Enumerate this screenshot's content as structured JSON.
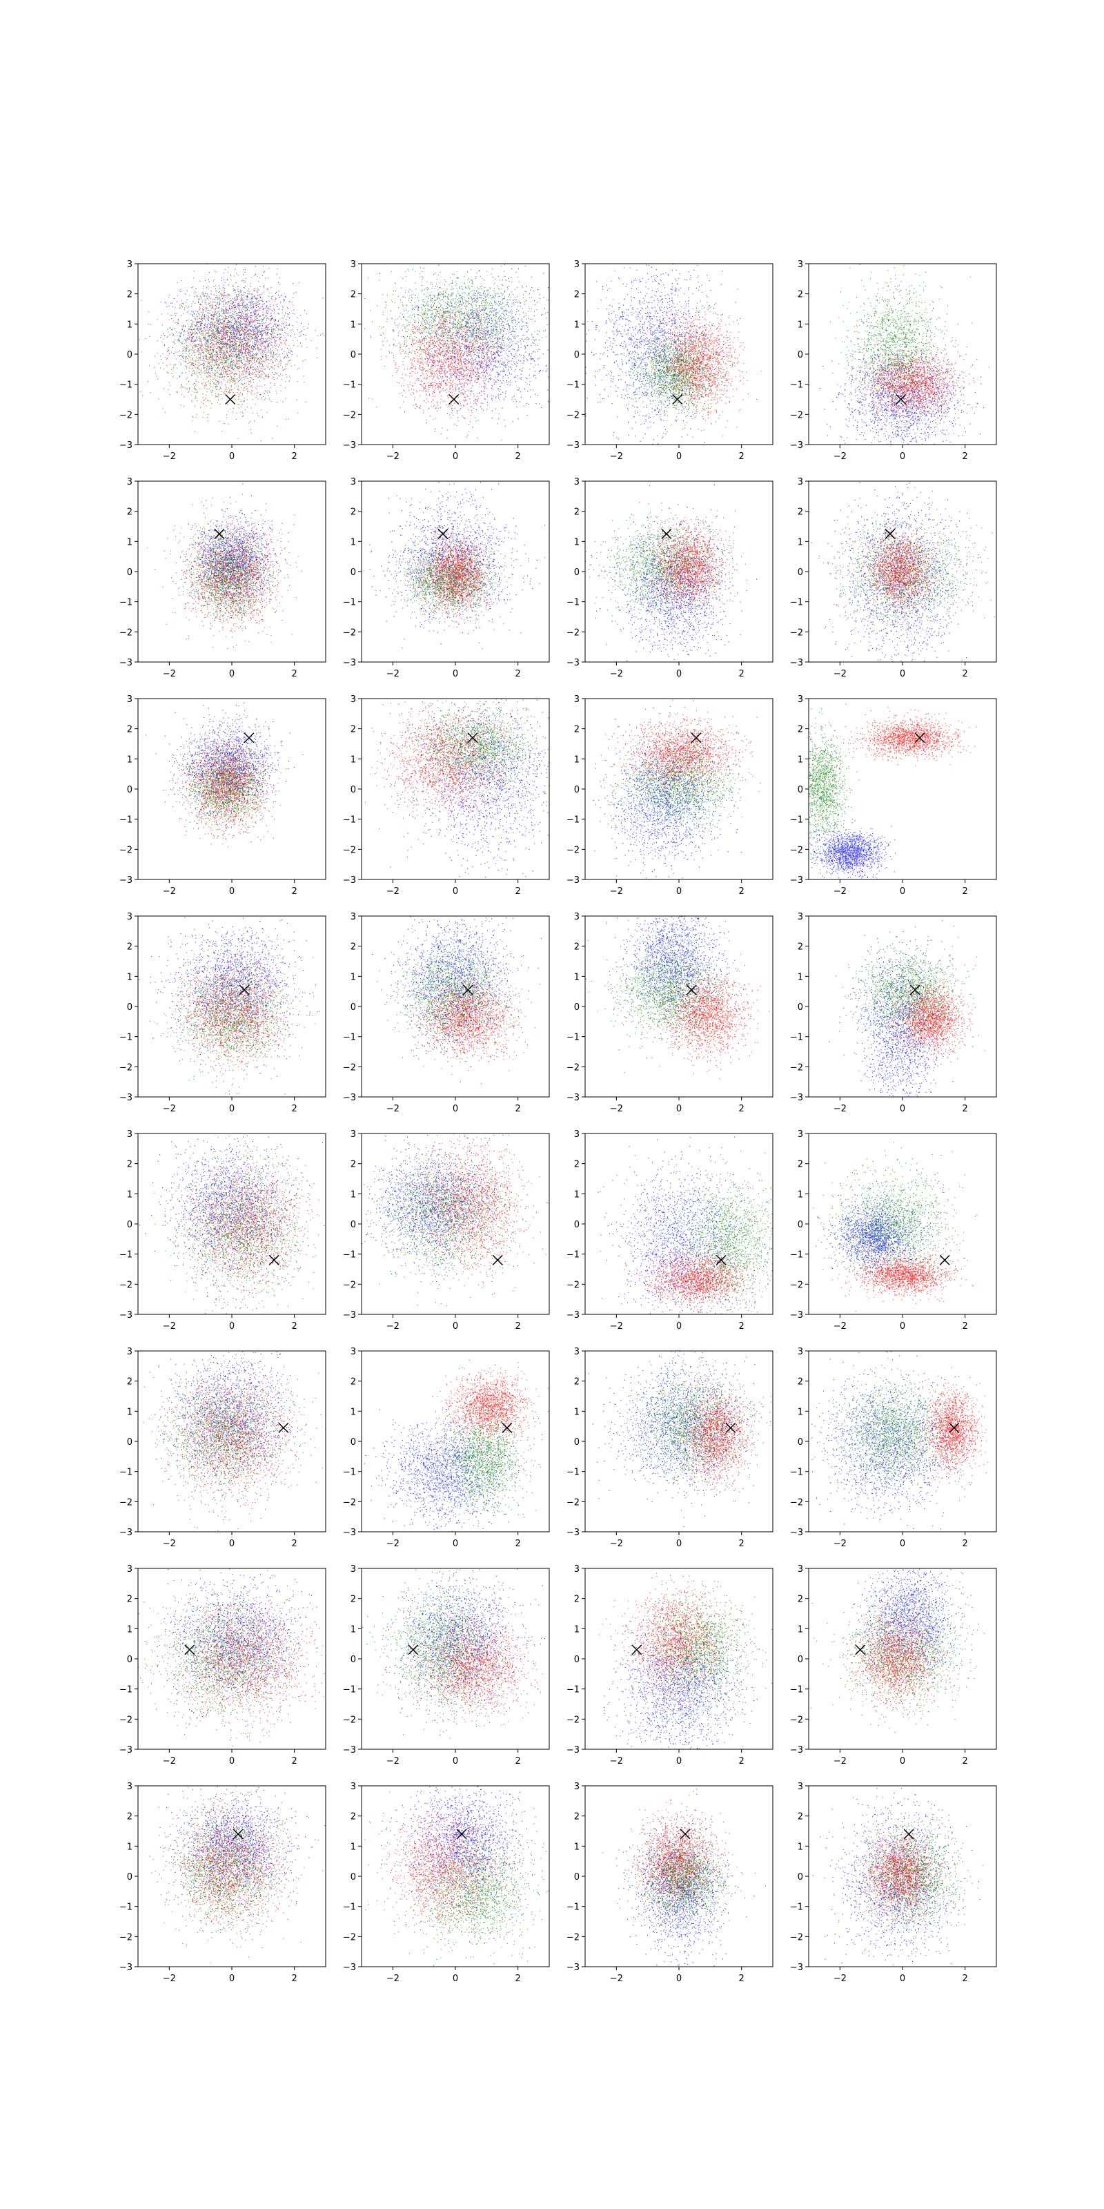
{
  "figure": {
    "rows": 8,
    "cols": 4,
    "series_colors": {
      "blue": "#0000ff",
      "green": "#008000",
      "red": "#ff0000",
      "marker": "#000000"
    }
  },
  "chart_data": {
    "type": "scatter",
    "xlim": [
      -3,
      3
    ],
    "ylim": [
      -3,
      3
    ],
    "xticks": [
      -2,
      0,
      2
    ],
    "yticks": [
      -3,
      -2,
      -1,
      0,
      1,
      2,
      3
    ],
    "xtick_labels": [
      "−2",
      "0",
      "2"
    ],
    "ytick_labels": [
      "−3",
      "−2",
      "−1",
      "0",
      "1",
      "2",
      "3"
    ],
    "grid": false,
    "legend": "none",
    "points_per_cluster": 1500,
    "row_markers": [
      {
        "x": -0.05,
        "y": -1.5
      },
      {
        "x": -0.4,
        "y": 1.25
      },
      {
        "x": 0.55,
        "y": 1.7
      },
      {
        "x": 0.4,
        "y": 0.55
      },
      {
        "x": 1.35,
        "y": -1.2
      },
      {
        "x": 1.65,
        "y": 0.45
      },
      {
        "x": -1.35,
        "y": 0.3
      },
      {
        "x": 0.2,
        "y": 1.4
      }
    ],
    "panels": [
      {
        "clusters": [
          {
            "color": "blue",
            "cx": 0.2,
            "cy": 0.8,
            "sx": 0.9,
            "sy": 0.8
          },
          {
            "color": "green",
            "cx": -0.2,
            "cy": 0.3,
            "sx": 0.9,
            "sy": 0.9
          },
          {
            "color": "red",
            "cx": 0.0,
            "cy": 0.3,
            "sx": 0.9,
            "sy": 0.9
          }
        ]
      },
      {
        "clusters": [
          {
            "color": "blue",
            "cx": 0.8,
            "cy": 0.3,
            "sx": 1.0,
            "sy": 1.1
          },
          {
            "color": "green",
            "cx": 0.2,
            "cy": 1.2,
            "sx": 1.1,
            "sy": 0.7
          },
          {
            "color": "red",
            "cx": -0.2,
            "cy": -0.2,
            "sx": 0.8,
            "sy": 0.8
          }
        ]
      },
      {
        "clusters": [
          {
            "color": "blue",
            "cx": -0.7,
            "cy": 0.3,
            "sx": 0.9,
            "sy": 1.3
          },
          {
            "color": "green",
            "cx": -0.1,
            "cy": -0.6,
            "sx": 0.6,
            "sy": 0.6
          },
          {
            "color": "red",
            "cx": 0.6,
            "cy": -0.3,
            "sx": 0.6,
            "sy": 0.8
          }
        ]
      },
      {
        "clusters": [
          {
            "color": "blue",
            "cx": 0.0,
            "cy": -1.5,
            "sx": 0.9,
            "sy": 0.8
          },
          {
            "color": "green",
            "cx": -0.2,
            "cy": 0.2,
            "sx": 0.7,
            "sy": 1.0
          },
          {
            "color": "red",
            "cx": 0.3,
            "cy": -1.0,
            "sx": 0.7,
            "sy": 0.5
          }
        ]
      },
      {
        "clusters": [
          {
            "color": "blue",
            "cx": 0.0,
            "cy": 0.3,
            "sx": 0.6,
            "sy": 0.7
          },
          {
            "color": "green",
            "cx": -0.1,
            "cy": -0.1,
            "sx": 0.6,
            "sy": 0.7
          },
          {
            "color": "red",
            "cx": 0.0,
            "cy": -0.1,
            "sx": 0.7,
            "sy": 0.8
          }
        ]
      },
      {
        "clusters": [
          {
            "color": "blue",
            "cx": -0.1,
            "cy": 0.4,
            "sx": 0.9,
            "sy": 1.0
          },
          {
            "color": "green",
            "cx": -0.2,
            "cy": -0.3,
            "sx": 0.7,
            "sy": 0.5
          },
          {
            "color": "red",
            "cx": 0.0,
            "cy": -0.1,
            "sx": 0.5,
            "sy": 0.6
          }
        ]
      },
      {
        "clusters": [
          {
            "color": "blue",
            "cx": -0.1,
            "cy": -0.6,
            "sx": 0.8,
            "sy": 1.0
          },
          {
            "color": "green",
            "cx": -0.5,
            "cy": 0.2,
            "sx": 0.9,
            "sy": 0.7
          },
          {
            "color": "red",
            "cx": 0.3,
            "cy": 0.2,
            "sx": 0.5,
            "sy": 0.6
          }
        ]
      },
      {
        "clusters": [
          {
            "color": "blue",
            "cx": -0.1,
            "cy": -0.3,
            "sx": 0.9,
            "sy": 1.3
          },
          {
            "color": "green",
            "cx": 0.1,
            "cy": -0.1,
            "sx": 1.0,
            "sy": 0.8
          },
          {
            "color": "red",
            "cx": -0.1,
            "cy": 0.0,
            "sx": 0.5,
            "sy": 0.6
          }
        ]
      },
      {
        "clusters": [
          {
            "color": "blue",
            "cx": -0.1,
            "cy": 0.8,
            "sx": 0.7,
            "sy": 0.7
          },
          {
            "color": "green",
            "cx": -0.2,
            "cy": 0.1,
            "sx": 0.6,
            "sy": 0.6
          },
          {
            "color": "red",
            "cx": -0.2,
            "cy": 0.1,
            "sx": 0.6,
            "sy": 0.7
          }
        ]
      },
      {
        "clusters": [
          {
            "color": "blue",
            "cx": 1.0,
            "cy": 0.3,
            "sx": 1.1,
            "sy": 1.2
          },
          {
            "color": "green",
            "cx": 0.6,
            "cy": 1.4,
            "sx": 0.9,
            "sy": 0.6
          },
          {
            "color": "red",
            "cx": -0.3,
            "cy": 0.9,
            "sx": 0.9,
            "sy": 0.8
          }
        ]
      },
      {
        "clusters": [
          {
            "color": "blue",
            "cx": -0.5,
            "cy": -0.4,
            "sx": 0.8,
            "sy": 1.0
          },
          {
            "color": "green",
            "cx": 0.0,
            "cy": 0.2,
            "sx": 0.8,
            "sy": 0.7
          },
          {
            "color": "red",
            "cx": 0.1,
            "cy": 1.2,
            "sx": 0.8,
            "sy": 0.5
          }
        ]
      },
      {
        "clusters": [
          {
            "color": "blue",
            "cx": -1.7,
            "cy": -2.1,
            "sx": 0.5,
            "sy": 0.35
          },
          {
            "color": "green",
            "cx": -2.6,
            "cy": 0.1,
            "sx": 0.4,
            "sy": 0.9
          },
          {
            "color": "red",
            "cx": 0.2,
            "cy": 1.7,
            "sx": 0.7,
            "sy": 0.3
          }
        ]
      },
      {
        "clusters": [
          {
            "color": "blue",
            "cx": 0.1,
            "cy": 0.8,
            "sx": 0.9,
            "sy": 0.9
          },
          {
            "color": "green",
            "cx": 0.0,
            "cy": -0.3,
            "sx": 0.8,
            "sy": 0.8
          },
          {
            "color": "red",
            "cx": 0.0,
            "cy": -0.2,
            "sx": 0.8,
            "sy": 0.8
          }
        ]
      },
      {
        "clusters": [
          {
            "color": "blue",
            "cx": 0.0,
            "cy": 0.9,
            "sx": 0.8,
            "sy": 1.0
          },
          {
            "color": "green",
            "cx": -0.1,
            "cy": 0.4,
            "sx": 0.8,
            "sy": 0.8
          },
          {
            "color": "red",
            "cx": 0.4,
            "cy": -0.4,
            "sx": 0.7,
            "sy": 0.6
          }
        ]
      },
      {
        "clusters": [
          {
            "color": "blue",
            "cx": -0.2,
            "cy": 1.6,
            "sx": 0.7,
            "sy": 0.9
          },
          {
            "color": "green",
            "cx": -0.3,
            "cy": 0.5,
            "sx": 0.8,
            "sy": 0.7
          },
          {
            "color": "red",
            "cx": 0.9,
            "cy": -0.3,
            "sx": 0.6,
            "sy": 0.6
          }
        ]
      },
      {
        "clusters": [
          {
            "color": "blue",
            "cx": -0.1,
            "cy": -0.8,
            "sx": 0.6,
            "sy": 1.3
          },
          {
            "color": "green",
            "cx": 0.2,
            "cy": 0.4,
            "sx": 0.8,
            "sy": 0.7
          },
          {
            "color": "red",
            "cx": 0.9,
            "cy": -0.4,
            "sx": 0.5,
            "sy": 0.5
          }
        ]
      },
      {
        "clusters": [
          {
            "color": "blue",
            "cx": -0.1,
            "cy": 0.6,
            "sx": 0.9,
            "sy": 1.0
          },
          {
            "color": "green",
            "cx": 0.3,
            "cy": -0.2,
            "sx": 0.9,
            "sy": 1.0
          },
          {
            "color": "red",
            "cx": 0.4,
            "cy": 0.0,
            "sx": 0.9,
            "sy": 1.0
          }
        ]
      },
      {
        "clusters": [
          {
            "color": "blue",
            "cx": -0.7,
            "cy": 0.7,
            "sx": 0.9,
            "sy": 0.8
          },
          {
            "color": "green",
            "cx": -0.3,
            "cy": 0.3,
            "sx": 1.0,
            "sy": 0.9
          },
          {
            "color": "red",
            "cx": 0.5,
            "cy": 0.6,
            "sx": 0.8,
            "sy": 1.0
          }
        ]
      },
      {
        "clusters": [
          {
            "color": "blue",
            "cx": 0.0,
            "cy": -0.6,
            "sx": 0.9,
            "sy": 1.2
          },
          {
            "color": "green",
            "cx": 1.6,
            "cy": -0.6,
            "sx": 0.7,
            "sy": 1.0
          },
          {
            "color": "red",
            "cx": 0.6,
            "cy": -1.8,
            "sx": 0.7,
            "sy": 0.4
          }
        ]
      },
      {
        "clusters": [
          {
            "color": "blue",
            "cx": -0.9,
            "cy": -0.4,
            "sx": 0.6,
            "sy": 0.5
          },
          {
            "color": "green",
            "cx": -0.3,
            "cy": 0.0,
            "sx": 0.9,
            "sy": 0.8
          },
          {
            "color": "red",
            "cx": 0.1,
            "cy": -1.7,
            "sx": 0.7,
            "sy": 0.3
          }
        ]
      },
      {
        "clusters": [
          {
            "color": "blue",
            "cx": 0.0,
            "cy": 0.8,
            "sx": 0.9,
            "sy": 1.0
          },
          {
            "color": "green",
            "cx": -0.3,
            "cy": 0.3,
            "sx": 0.9,
            "sy": 0.9
          },
          {
            "color": "red",
            "cx": 0.0,
            "cy": 0.2,
            "sx": 0.9,
            "sy": 1.0
          }
        ]
      },
      {
        "clusters": [
          {
            "color": "blue",
            "cx": -0.4,
            "cy": -1.0,
            "sx": 0.9,
            "sy": 0.8
          },
          {
            "color": "green",
            "cx": 0.9,
            "cy": -0.6,
            "sx": 0.6,
            "sy": 0.8
          },
          {
            "color": "red",
            "cx": 1.1,
            "cy": 1.2,
            "sx": 0.6,
            "sy": 0.5
          }
        ]
      },
      {
        "clusters": [
          {
            "color": "blue",
            "cx": 0.0,
            "cy": 0.6,
            "sx": 1.0,
            "sy": 1.0
          },
          {
            "color": "green",
            "cx": 0.4,
            "cy": 0.5,
            "sx": 0.8,
            "sy": 0.8
          },
          {
            "color": "red",
            "cx": 1.2,
            "cy": 0.2,
            "sx": 0.5,
            "sy": 0.7
          }
        ]
      },
      {
        "clusters": [
          {
            "color": "blue",
            "cx": -0.5,
            "cy": -0.1,
            "sx": 1.0,
            "sy": 1.1
          },
          {
            "color": "green",
            "cx": -0.3,
            "cy": 0.3,
            "sx": 0.8,
            "sy": 0.8
          },
          {
            "color": "red",
            "cx": 1.6,
            "cy": 0.4,
            "sx": 0.4,
            "sy": 0.6
          }
        ]
      },
      {
        "clusters": [
          {
            "color": "blue",
            "cx": 0.2,
            "cy": 0.6,
            "sx": 1.0,
            "sy": 0.9
          },
          {
            "color": "green",
            "cx": -0.2,
            "cy": 0.1,
            "sx": 1.0,
            "sy": 0.9
          },
          {
            "color": "red",
            "cx": 0.3,
            "cy": -0.1,
            "sx": 1.0,
            "sy": 0.9
          }
        ]
      },
      {
        "clusters": [
          {
            "color": "blue",
            "cx": 0.1,
            "cy": 0.7,
            "sx": 0.9,
            "sy": 1.0
          },
          {
            "color": "green",
            "cx": -0.4,
            "cy": 0.3,
            "sx": 0.8,
            "sy": 0.9
          },
          {
            "color": "red",
            "cx": 0.6,
            "cy": -0.3,
            "sx": 0.8,
            "sy": 0.7
          }
        ]
      },
      {
        "clusters": [
          {
            "color": "blue",
            "cx": 0.0,
            "cy": -1.1,
            "sx": 0.9,
            "sy": 1.0
          },
          {
            "color": "green",
            "cx": 0.6,
            "cy": 0.3,
            "sx": 0.8,
            "sy": 0.8
          },
          {
            "color": "red",
            "cx": -0.1,
            "cy": 0.6,
            "sx": 0.7,
            "sy": 0.8
          }
        ]
      },
      {
        "clusters": [
          {
            "color": "blue",
            "cx": 0.2,
            "cy": 1.4,
            "sx": 0.7,
            "sy": 0.9
          },
          {
            "color": "green",
            "cx": 0.0,
            "cy": 0.2,
            "sx": 0.9,
            "sy": 0.8
          },
          {
            "color": "red",
            "cx": -0.2,
            "cy": 0.0,
            "sx": 0.6,
            "sy": 0.7
          }
        ]
      },
      {
        "clusters": [
          {
            "color": "blue",
            "cx": 0.1,
            "cy": 1.0,
            "sx": 0.8,
            "sy": 0.8
          },
          {
            "color": "green",
            "cx": -0.2,
            "cy": 0.2,
            "sx": 0.8,
            "sy": 0.9
          },
          {
            "color": "red",
            "cx": -0.1,
            "cy": 0.3,
            "sx": 0.8,
            "sy": 0.9
          }
        ]
      },
      {
        "clusters": [
          {
            "color": "blue",
            "cx": 0.3,
            "cy": 1.2,
            "sx": 0.9,
            "sy": 0.9
          },
          {
            "color": "green",
            "cx": 0.6,
            "cy": -0.6,
            "sx": 0.8,
            "sy": 0.8
          },
          {
            "color": "red",
            "cx": -0.4,
            "cy": 0.3,
            "sx": 0.8,
            "sy": 0.9
          }
        ]
      },
      {
        "clusters": [
          {
            "color": "blue",
            "cx": 0.0,
            "cy": -0.5,
            "sx": 0.7,
            "sy": 1.0
          },
          {
            "color": "green",
            "cx": 0.1,
            "cy": -0.1,
            "sx": 0.6,
            "sy": 0.6
          },
          {
            "color": "red",
            "cx": -0.1,
            "cy": 0.5,
            "sx": 0.6,
            "sy": 0.7
          }
        ]
      },
      {
        "clusters": [
          {
            "color": "blue",
            "cx": -0.2,
            "cy": -0.2,
            "sx": 0.9,
            "sy": 1.2
          },
          {
            "color": "green",
            "cx": 0.3,
            "cy": 0.0,
            "sx": 0.7,
            "sy": 0.8
          },
          {
            "color": "red",
            "cx": -0.1,
            "cy": 0.1,
            "sx": 0.5,
            "sy": 0.6
          }
        ]
      }
    ]
  }
}
